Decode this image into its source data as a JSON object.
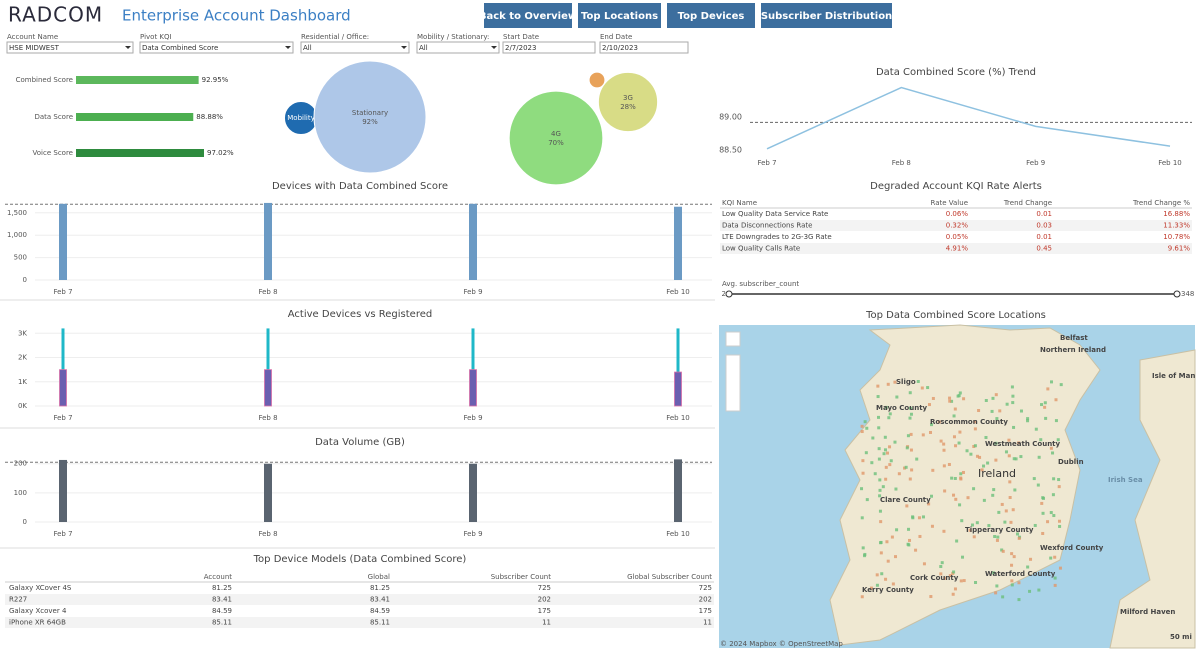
{
  "header": {
    "logo": "RADCOM",
    "title": "Enterprise Account Dashboard",
    "buttons": [
      "Back to Overview",
      "Top Locations",
      "Top Devices",
      "Subscriber Distribution"
    ]
  },
  "filters": [
    {
      "label": "Account Name",
      "value": "HSE MIDWEST"
    },
    {
      "label": "Pivot KQI",
      "value": "Data Combined Score"
    },
    {
      "label": "Residential / Office:",
      "value": "All"
    },
    {
      "label": "Mobility / Stationary:",
      "value": "All"
    },
    {
      "label": "Start Date",
      "value": "2/7/2023"
    },
    {
      "label": "End Date",
      "value": "2/10/2023"
    }
  ],
  "score_bars": {
    "type": "bar",
    "categories": [
      "Combined Score",
      "Data Score",
      "Voice Score"
    ],
    "values": [
      92.95,
      88.88,
      97.02
    ],
    "value_labels": [
      "92.95%",
      "88.88%",
      "97.02%"
    ],
    "colors": [
      "#5cb85c",
      "#4caf50",
      "#2e8b3e"
    ]
  },
  "mobility_bubbles": {
    "type": "bubble",
    "items": [
      {
        "name": "Mobility",
        "value": 8,
        "color": "#1f6bb0"
      },
      {
        "name": "Stationary",
        "value": 92,
        "label": "92%",
        "color": "#aec7e8"
      }
    ]
  },
  "tech_bubbles": {
    "type": "bubble",
    "items": [
      {
        "name": "4G",
        "value": 70,
        "label": "70%",
        "color": "#8fdc7f"
      },
      {
        "name": "3G",
        "value": 28,
        "label": "28%",
        "color": "#d8dc86"
      },
      {
        "value": 2,
        "color": "#e8a25a"
      }
    ]
  },
  "trend_chart": {
    "type": "line",
    "title": "Data Combined Score (%) Trend",
    "categories": [
      "Feb 7",
      "Feb 8",
      "Feb 9",
      "Feb 10"
    ],
    "values": [
      88.52,
      89.45,
      88.86,
      88.56
    ],
    "reference": 88.92,
    "color": "#8ec1e0",
    "ylim": [
      88.38,
      89.64
    ],
    "yticks": [
      {
        "value": 88.5,
        "label": "88.50"
      },
      {
        "value": 89,
        "label": "89.00"
      }
    ]
  },
  "devices_chart": {
    "type": "bar",
    "title": "Devices with Data Combined Score",
    "categories": [
      "Feb 7",
      "Feb 8",
      "Feb 9",
      "Feb 10"
    ],
    "values": [
      1700,
      1720,
      1700,
      1635
    ],
    "reference": 1690,
    "color": "#6b9ac4",
    "ylim": [
      0,
      1830
    ],
    "yticks": [
      0,
      500,
      {
        "value": 1000,
        "label": "1,000"
      },
      {
        "value": 1500,
        "label": "1,500"
      }
    ]
  },
  "active_chart": {
    "type": "bar",
    "title": "Active Devices vs Registered",
    "categories": [
      "Feb 7",
      "Feb 8",
      "Feb 9",
      "Feb 10"
    ],
    "series": [
      {
        "color": "#1fb8c8",
        "values": [
          3200,
          3200,
          3200,
          3200
        ]
      },
      {
        "color": "#6a5fb0",
        "values": [
          1500,
          1500,
          1500,
          1400
        ]
      }
    ],
    "ylim": [
      0,
      3300
    ],
    "yticks": [
      {
        "value": 0,
        "label": "0K"
      },
      {
        "value": 1000,
        "label": "1K"
      },
      {
        "value": 2000,
        "label": "2K"
      },
      {
        "value": 3000,
        "label": "3K"
      }
    ]
  },
  "volume_chart": {
    "type": "bar",
    "title": "Data Volume (GB)",
    "categories": [
      "Feb 7",
      "Feb 8",
      "Feb 9",
      "Feb 10"
    ],
    "values": [
      213,
      200,
      200,
      215
    ],
    "reference": 205,
    "color": "#5a6470",
    "ylim": [
      0,
      230
    ],
    "yticks": [
      0,
      100,
      200
    ]
  },
  "kqi_table": {
    "title": "Degraded Account KQI Rate Alerts",
    "columns": [
      "KQI Name",
      "Rate Value",
      "Trend Change",
      "Trend Change %"
    ],
    "rows": [
      [
        "Low Quality Data Service Rate",
        "0.06%",
        "0.01",
        "16.88%"
      ],
      [
        "Data Disconnections Rate",
        "0.32%",
        "0.03",
        "11.33%"
      ],
      [
        "LTE Downgrades to 2G-3G Rate",
        "0.05%",
        "0.01",
        "10.78%"
      ],
      [
        "Low Quality Calls Rate",
        "4.91%",
        "0.45",
        "9.61%"
      ]
    ]
  },
  "slider": {
    "label": "Avg. subscriber_count",
    "min": "2",
    "max": "348"
  },
  "map": {
    "title": "Top Data Combined Score Locations",
    "attribution": "© 2024 Mapbox © OpenStreetMap",
    "labels": [
      "Belfast",
      "Northern Ireland",
      "Isle of Man",
      "Sligo",
      "Mayo County",
      "Roscommon County",
      "Westmeath County",
      "Ireland",
      "Dublin",
      "Irish Sea",
      "Clare County",
      "Tipperary County",
      "Cork County",
      "Waterford County",
      "Wexford County",
      "Kerry County",
      "Milford Haven",
      "50 mi"
    ]
  },
  "device_table": {
    "title": "Top Device Models (Data Combined Score)",
    "columns": [
      "Account",
      "Global",
      "Subscriber Count",
      "Global Subscriber Count"
    ],
    "rows": [
      [
        "Galaxy XCover 4S",
        "81.25",
        "81.25",
        "725",
        "725"
      ],
      [
        "R227",
        "83.41",
        "83.41",
        "202",
        "202"
      ],
      [
        "Galaxy Xcover 4",
        "84.59",
        "84.59",
        "175",
        "175"
      ],
      [
        "iPhone XR 64GB",
        "85.11",
        "85.11",
        "11",
        "11"
      ]
    ]
  }
}
